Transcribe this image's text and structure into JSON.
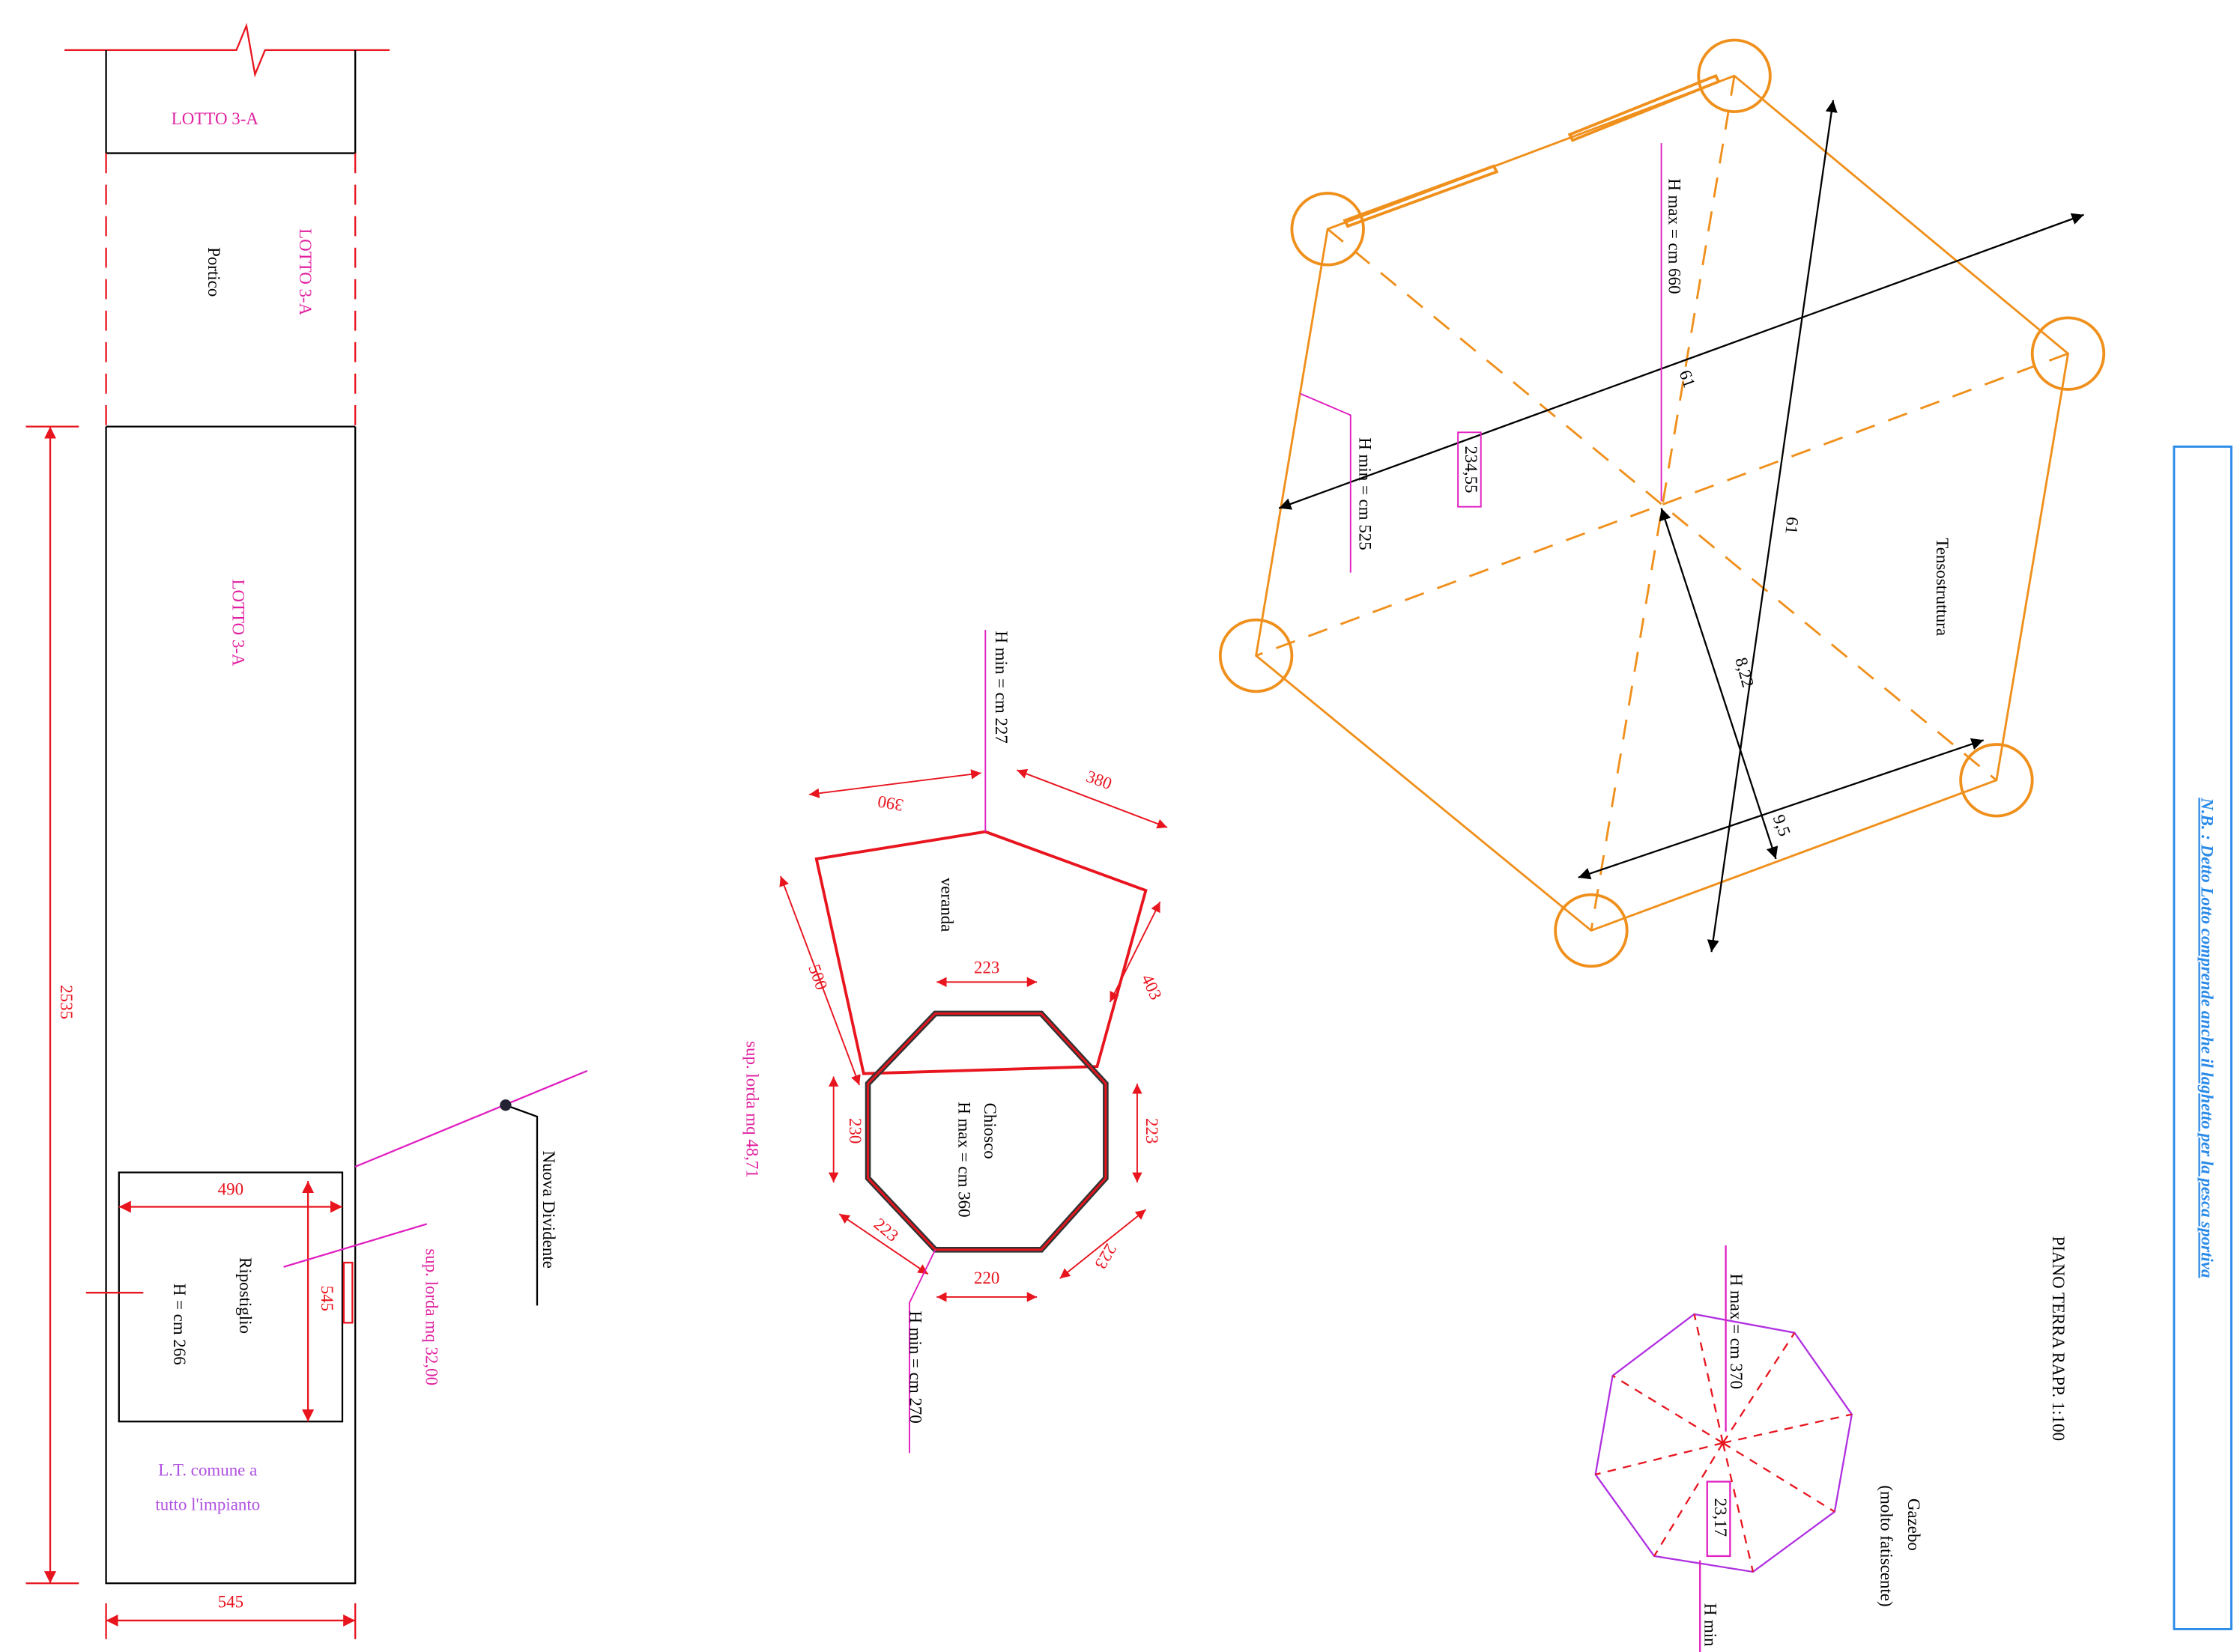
{
  "title": "PIANO TERRA RAPP. 1:100",
  "note": "N.B. : Detto Lotto comprende anche il laghetto per la pesca sportiva",
  "lotto": {
    "top_label": "LOTTO  3-A",
    "portico_lotto": "LOTTO  3-A",
    "portico": "Portico",
    "main_label": "LOTTO  3-A",
    "length": "2535",
    "width": "545",
    "ripostiglio": {
      "name": "Ripostiglio",
      "height": "H = cm 266",
      "width": "490",
      "depth": "545"
    },
    "common": [
      "L.T. comune a",
      "tutto l'impianto"
    ],
    "area": "sup.  lorda mq 32,00",
    "divider": "Nuova Dividente"
  },
  "kiosk": {
    "h_min_top": "H min = cm 227",
    "dim_390": "390",
    "dim_380": "380",
    "veranda": "veranda",
    "dim_223_top": "223",
    "dim_500": "500",
    "dim_403": "403",
    "area": "sup.  lorda mq 48,71",
    "dim_230": "230",
    "dim_223_right": "223",
    "name": "Chiosco",
    "h_max": "H max = cm 360",
    "dim_223_bl": "223",
    "dim_223_br": "223",
    "dim_220": "220",
    "h_min_bottom": "H min = cm 270"
  },
  "tensostruttura": {
    "name": "Tensostruttura",
    "h_max": "H max = cm 660",
    "h_min": "H min = cm 525",
    "height_box": "234,55",
    "dim_a": "61",
    "dim_b": "61",
    "dim_c": "8,22",
    "dim_d": "9,5"
  },
  "gazebo": {
    "name": "Gazebo",
    "state": "(molto fatiscente)",
    "h_max": "H max = cm 370",
    "height_box": "23,17",
    "h_min": "H min"
  }
}
